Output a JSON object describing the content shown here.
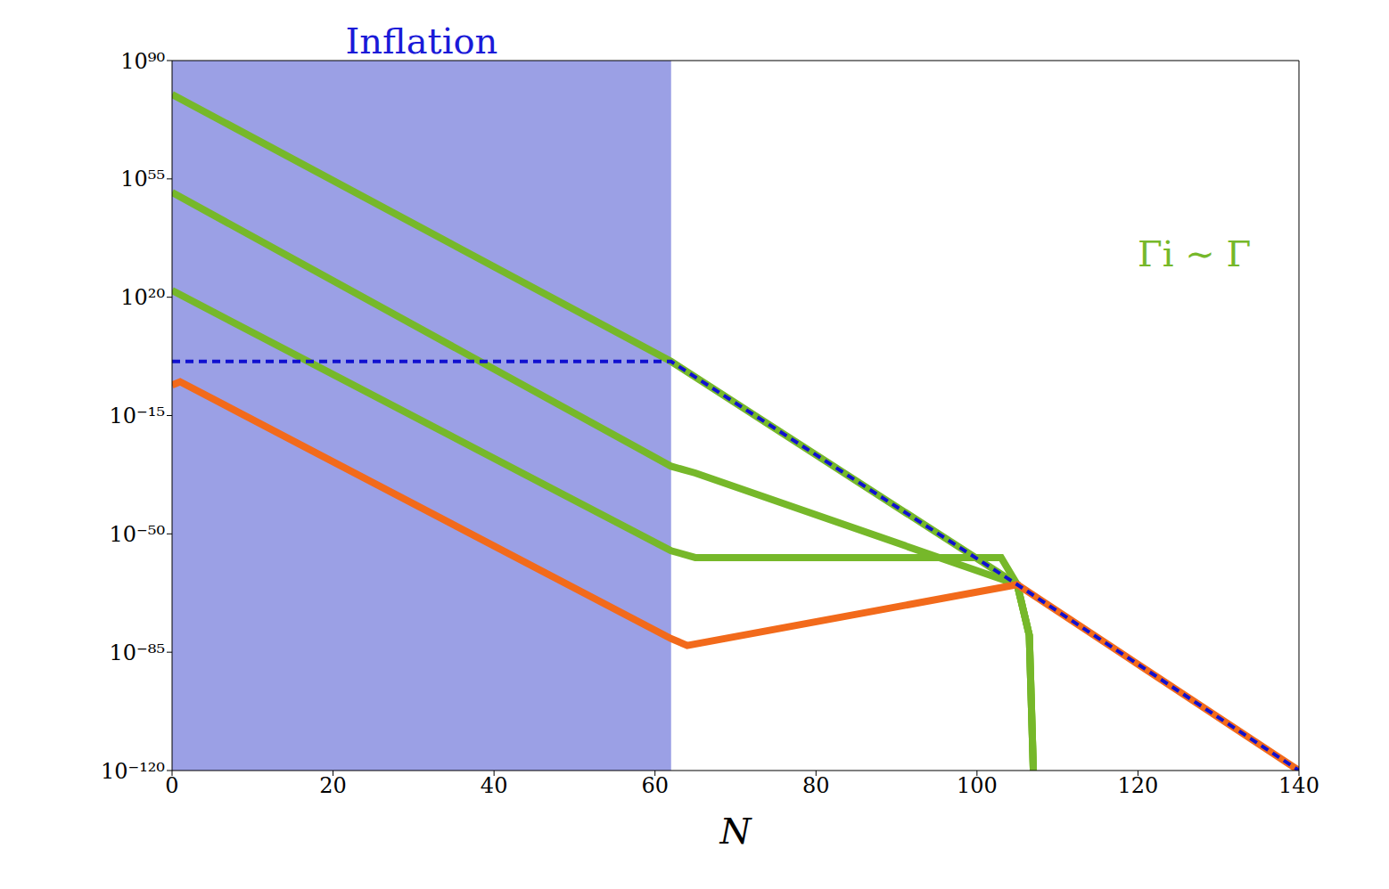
{
  "chart_data": {
    "type": "line",
    "x_label": "N",
    "log": "y",
    "grid": false,
    "xlim": [
      0,
      140
    ],
    "xticks": [
      0,
      20,
      40,
      60,
      80,
      100,
      120,
      140
    ],
    "ylim": [
      1e-120,
      1e+90
    ],
    "yticks": [
      {
        "value": 1e+90,
        "label": "10⁹⁰"
      },
      {
        "value": 1e+55,
        "label": "10⁵⁵"
      },
      {
        "value": 1e+20,
        "label": "10²⁰"
      },
      {
        "value": 1e-15,
        "label": "10⁻¹⁵"
      },
      {
        "value": 1e-50,
        "label": "10⁻⁵⁰"
      },
      {
        "value": 1e-85,
        "label": "10⁻⁸⁵"
      },
      {
        "value": 1e-120,
        "label": "10⁻¹²⁰"
      }
    ],
    "shaded_region": {
      "label": "Inflation",
      "x": [
        0,
        62
      ],
      "color": "#8a8fe0"
    },
    "annotations": [
      {
        "text": "Γi ∼ Γ",
        "x": 127,
        "y": 1e+33,
        "color": "#76b82a"
      }
    ],
    "series": [
      {
        "color": "#76b82a",
        "line_style": "solid",
        "x": [
          0,
          62,
          105,
          106.5,
          107
        ],
        "values": [
          1e+80,
          10.0,
          1e-65,
          1e-80,
          1e-120
        ]
      },
      {
        "color": "#76b82a",
        "line_style": "solid",
        "x": [
          0,
          62,
          65,
          105,
          106.5,
          107
        ],
        "values": [
          1e+51,
          1e-30,
          1e-32,
          1e-65,
          1e-80,
          1e-120
        ]
      },
      {
        "color": "#76b82a",
        "line_style": "solid",
        "x": [
          0,
          62,
          65,
          103,
          105,
          106.5,
          107
        ],
        "values": [
          1e+22,
          1e-55,
          1e-57,
          1e-57,
          1e-65,
          1e-80,
          1e-120
        ]
      },
      {
        "color": "#f26a1b",
        "line_style": "solid",
        "x": [
          0,
          1,
          62,
          64,
          105,
          140
        ],
        "values": [
          1e-06,
          1e-05,
          1e-81,
          1e-83,
          1e-65,
          1e-120
        ]
      },
      {
        "color": "#1010d0",
        "line_style": "dashed",
        "x": [
          0,
          62,
          105,
          140
        ],
        "values": [
          10.0,
          10.0,
          1e-65,
          1e-120
        ]
      }
    ]
  }
}
